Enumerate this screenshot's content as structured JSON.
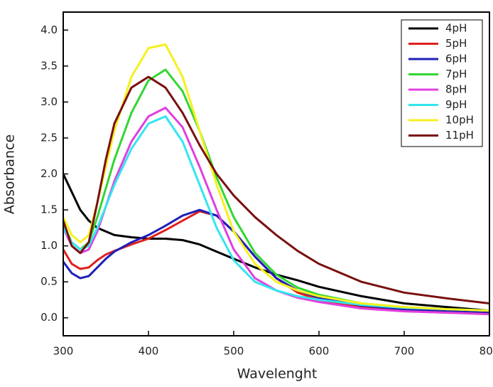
{
  "chart_data": {
    "type": "line",
    "x_label": "Wavelenght",
    "y_label": "Absorbance",
    "x": [
      300,
      310,
      320,
      330,
      340,
      350,
      360,
      380,
      400,
      420,
      440,
      460,
      480,
      500,
      525,
      550,
      575,
      600,
      650,
      700,
      750,
      800
    ],
    "series": [
      {
        "name": "4pH",
        "color": "#000000",
        "values": [
          2.0,
          1.75,
          1.5,
          1.35,
          1.25,
          1.2,
          1.15,
          1.12,
          1.1,
          1.1,
          1.08,
          1.02,
          0.92,
          0.82,
          0.7,
          0.6,
          0.52,
          0.43,
          0.3,
          0.2,
          0.15,
          0.1
        ]
      },
      {
        "name": "5pH",
        "color": "#e0201e",
        "values": [
          0.95,
          0.75,
          0.68,
          0.7,
          0.8,
          0.88,
          0.93,
          1.02,
          1.1,
          1.22,
          1.35,
          1.48,
          1.42,
          1.2,
          0.85,
          0.55,
          0.35,
          0.25,
          0.15,
          0.1,
          0.08,
          0.06
        ]
      },
      {
        "name": "6pH",
        "color": "#1f1fb8",
        "values": [
          0.78,
          0.62,
          0.55,
          0.58,
          0.7,
          0.82,
          0.92,
          1.05,
          1.15,
          1.28,
          1.42,
          1.5,
          1.42,
          1.2,
          0.85,
          0.55,
          0.38,
          0.28,
          0.17,
          0.12,
          0.1,
          0.08
        ]
      },
      {
        "name": "7pH",
        "color": "#33d633",
        "values": [
          1.3,
          1.05,
          0.95,
          1.05,
          1.4,
          1.8,
          2.2,
          2.85,
          3.3,
          3.45,
          3.15,
          2.6,
          1.95,
          1.4,
          0.9,
          0.6,
          0.42,
          0.32,
          0.2,
          0.15,
          0.12,
          0.1
        ]
      },
      {
        "name": "8pH",
        "color": "#e040e0",
        "values": [
          1.25,
          1.0,
          0.9,
          0.95,
          1.2,
          1.55,
          1.9,
          2.45,
          2.8,
          2.92,
          2.65,
          2.1,
          1.5,
          0.95,
          0.55,
          0.38,
          0.28,
          0.22,
          0.13,
          0.09,
          0.07,
          0.05
        ]
      },
      {
        "name": "9pH",
        "color": "#33e5f0",
        "values": [
          1.25,
          1.05,
          0.95,
          1.0,
          1.25,
          1.55,
          1.85,
          2.35,
          2.7,
          2.8,
          2.45,
          1.85,
          1.25,
          0.8,
          0.5,
          0.38,
          0.3,
          0.25,
          0.18,
          0.14,
          0.12,
          0.1
        ]
      },
      {
        "name": "10pH",
        "color": "#f5f020",
        "values": [
          1.4,
          1.15,
          1.05,
          1.15,
          1.6,
          2.1,
          2.6,
          3.35,
          3.75,
          3.8,
          3.35,
          2.6,
          1.85,
          1.2,
          0.75,
          0.5,
          0.38,
          0.3,
          0.2,
          0.15,
          0.12,
          0.1
        ]
      },
      {
        "name": "11pH",
        "color": "#7a1010",
        "values": [
          1.35,
          1.0,
          0.9,
          1.05,
          1.6,
          2.2,
          2.7,
          3.2,
          3.35,
          3.2,
          2.85,
          2.4,
          2.0,
          1.7,
          1.4,
          1.15,
          0.93,
          0.75,
          0.5,
          0.35,
          0.27,
          0.2
        ]
      }
    ],
    "xlim": [
      300,
      800
    ],
    "ylim": [
      -0.25,
      4.25
    ],
    "xticks": [
      300,
      400,
      500,
      600,
      700,
      800
    ],
    "yticks": [
      {
        "value": 0,
        "label": "0.0"
      },
      0.5,
      {
        "value": 1,
        "label": "1.0"
      },
      1.5,
      {
        "value": 2,
        "label": "2.0"
      },
      2.5,
      {
        "value": 3,
        "label": "3.0"
      },
      3.5,
      {
        "value": 4,
        "label": "4.0"
      }
    ],
    "grid": false,
    "legend": "top-right"
  }
}
